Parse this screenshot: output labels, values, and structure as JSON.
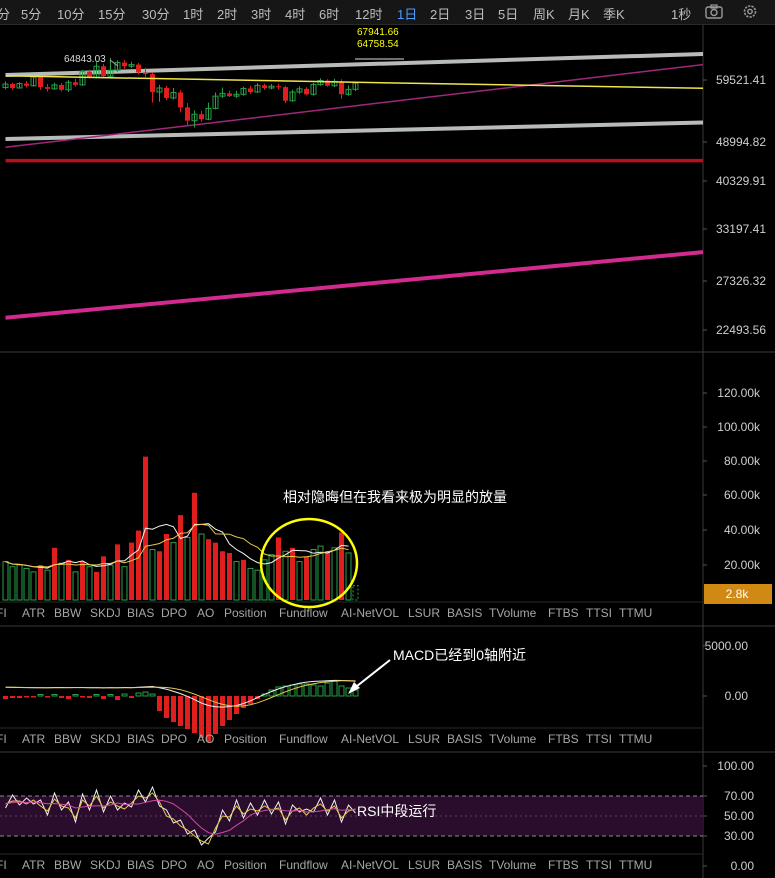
{
  "toolbar": {
    "timeframes": [
      "分",
      "5分",
      "10分",
      "15分",
      "30分",
      "1时",
      "2时",
      "3时",
      "4时",
      "6时",
      "12时",
      "1日",
      "2日",
      "3日",
      "5日",
      "周K",
      "月K",
      "季K"
    ],
    "active": "1日",
    "seconds_label": "1秒",
    "camera_icon": "camera-icon",
    "settings_icon": "gear-icon"
  },
  "indicator_tabs": [
    "FI",
    "ATR",
    "BBW",
    "SKDJ",
    "BIAS",
    "DPO",
    "AO",
    "Position",
    "Fundflow",
    "AI-NetVOL",
    "LSUR",
    "BASIS",
    "TVolume",
    "FTBS",
    "TTSI",
    "TTMU"
  ],
  "colors": {
    "up": "#26a148",
    "down": "#e01e1e",
    "yellow_line": "#f0e44a",
    "channel": "#b8bcb8",
    "magenta": "#d22a8e",
    "purple_thin": "#a0287a",
    "support_red": "#b5101e",
    "annotation": "#ffff00",
    "volume_badge": "#d08a14"
  },
  "chart_data": [
    {
      "type": "candlestick",
      "name": "price",
      "y_ticks": [
        "59521.41",
        "48994.82",
        "40329.91",
        "33197.41",
        "27326.32",
        "22493.56"
      ],
      "labels": {
        "high_left": "64843.03",
        "top_1": "67941.66",
        "top_2": "64758.54"
      },
      "candles": [
        [
          57800,
          58600,
          57400,
          59200
        ],
        [
          58600,
          57700,
          57300,
          58900
        ],
        [
          57700,
          58700,
          57600,
          59000
        ],
        [
          58700,
          58200,
          57800,
          59300
        ],
        [
          58200,
          60200,
          58000,
          60600
        ],
        [
          60200,
          57900,
          57300,
          60500
        ],
        [
          57900,
          57500,
          56900,
          58600
        ],
        [
          57500,
          58400,
          57300,
          58900
        ],
        [
          58400,
          57300,
          56900,
          58800
        ],
        [
          57300,
          59000,
          56800,
          59500
        ],
        [
          59000,
          58400,
          58000,
          59800
        ],
        [
          58400,
          61500,
          58200,
          61900
        ],
        [
          61500,
          60100,
          59900,
          62000
        ],
        [
          60100,
          62800,
          59900,
          63800
        ],
        [
          62800,
          60400,
          60100,
          63400
        ],
        [
          60400,
          61800,
          60200,
          64843
        ],
        [
          61800,
          63700,
          61400,
          64300
        ],
        [
          63700,
          62800,
          62200,
          64300
        ],
        [
          62800,
          63200,
          62400,
          63900
        ],
        [
          63200,
          61300,
          60900,
          63600
        ],
        [
          61300,
          60900,
          60200,
          62400
        ],
        [
          60900,
          56800,
          54500,
          61300
        ],
        [
          56800,
          57700,
          54700,
          58400
        ],
        [
          57700,
          55500,
          55000,
          58200
        ],
        [
          55500,
          56700,
          55200,
          57700
        ],
        [
          56700,
          53500,
          52500,
          57200
        ],
        [
          53500,
          50800,
          49800,
          54400
        ],
        [
          50800,
          52100,
          49500,
          52900
        ],
        [
          52100,
          51100,
          50600,
          52800
        ],
        [
          51100,
          53300,
          50900,
          54500
        ],
        [
          53300,
          55900,
          53100,
          56700
        ],
        [
          55900,
          56500,
          55500,
          57800
        ],
        [
          56500,
          55900,
          55700,
          57100
        ],
        [
          55900,
          56300,
          55500,
          57100
        ],
        [
          56300,
          57600,
          56000,
          58000
        ],
        [
          57600,
          56800,
          56400,
          58200
        ],
        [
          56800,
          58300,
          56600,
          58800
        ],
        [
          58300,
          57700,
          57300,
          58700
        ],
        [
          57700,
          58100,
          57400,
          58600
        ],
        [
          58100,
          57900,
          57400,
          58700
        ],
        [
          57900,
          54900,
          54400,
          58200
        ],
        [
          54900,
          56800,
          54700,
          57300
        ],
        [
          56800,
          57500,
          56400,
          58100
        ],
        [
          57500,
          56300,
          56100,
          57900
        ],
        [
          56300,
          58500,
          56000,
          58900
        ],
        [
          58500,
          59400,
          58200,
          59900
        ],
        [
          59400,
          58200,
          58000,
          59700
        ],
        [
          58200,
          59200,
          57900,
          59800
        ],
        [
          59200,
          56300,
          55300,
          59700
        ],
        [
          56300,
          57400,
          56000,
          58300
        ],
        [
          57400,
          58800,
          57000,
          59100
        ]
      ],
      "lines": {
        "yellow_trend": [
          [
            0,
            60500
          ],
          [
            50,
            59000
          ],
          [
            200,
            55000
          ]
        ],
        "upper_channel": [
          [
            0,
            60700
          ],
          [
            200,
            71500
          ]
        ],
        "lower_channel": [
          [
            0,
            47300
          ],
          [
            200,
            53800
          ]
        ],
        "purple_trend": [
          [
            0,
            45800
          ],
          [
            140,
            72000
          ]
        ],
        "magenta_support": [
          [
            0,
            23600
          ],
          [
            200,
            39400
          ]
        ],
        "red_horizontal": [
          [
            0,
            43500
          ],
          [
            200,
            43500
          ]
        ]
      }
    },
    {
      "type": "bar",
      "name": "volume",
      "y_ticks": [
        "120.00k",
        "100.00k",
        "80.00k",
        "60.00k",
        "40.00k",
        "20.00k"
      ],
      "current_value": "2.8k",
      "values": [
        22000,
        19000,
        20000,
        18000,
        16000,
        20000,
        17000,
        30000,
        21000,
        23000,
        16000,
        22000,
        19000,
        16000,
        25000,
        20000,
        32000,
        19000,
        33000,
        40000,
        83000,
        29000,
        28000,
        38000,
        33000,
        49000,
        36000,
        62000,
        38000,
        35000,
        33000,
        28000,
        27000,
        22000,
        23000,
        18000,
        17000,
        23000,
        26000,
        36000,
        28000,
        30000,
        22000,
        25000,
        29000,
        31000,
        28000,
        30000,
        39000,
        27000,
        8000
      ],
      "up": [
        true,
        true,
        true,
        true,
        true,
        false,
        true,
        false,
        true,
        false,
        true,
        false,
        true,
        false,
        false,
        true,
        false,
        true,
        false,
        false,
        false,
        true,
        false,
        false,
        true,
        false,
        true,
        false,
        true,
        false,
        false,
        false,
        false,
        true,
        false,
        true,
        true,
        true,
        true,
        false,
        true,
        false,
        true,
        false,
        true,
        true,
        false,
        true,
        false,
        true,
        true
      ],
      "annotation": "相对隐晦但在我看来极为明显的放量"
    },
    {
      "type": "bar",
      "name": "MACD",
      "y_ticks": [
        "5000.00",
        "0.00"
      ],
      "histogram": [
        -300,
        -200,
        -200,
        -100,
        -100,
        0,
        -100,
        0,
        -200,
        -300,
        0,
        -100,
        -200,
        0,
        -300,
        100,
        -400,
        200,
        -200,
        300,
        400,
        200,
        -1500,
        -2200,
        -2600,
        -3000,
        -3300,
        -3700,
        -4200,
        -4600,
        -3800,
        -3000,
        -2400,
        -1800,
        -1200,
        -800,
        -300,
        200,
        600,
        900,
        1000,
        1100,
        1200,
        1200,
        1100,
        1000,
        1300,
        1500,
        1000,
        800,
        600
      ],
      "annotation": "MACD已经到0轴附近"
    },
    {
      "type": "line",
      "name": "RSI",
      "y_ticks": [
        "100.00",
        "70.00",
        "50.00",
        "30.00",
        "0.00"
      ],
      "values": [
        62,
        65,
        65,
        62,
        66,
        60,
        55,
        67,
        60,
        58,
        48,
        66,
        60,
        70,
        58,
        64,
        60,
        57,
        63,
        70,
        68,
        73,
        64,
        50,
        47,
        40,
        36,
        30,
        25,
        22,
        38,
        50,
        49,
        60,
        52,
        57,
        55,
        60,
        56,
        58,
        46,
        55,
        58,
        51,
        58,
        62,
        55,
        60,
        48,
        55,
        57
      ],
      "annotation": "RSI中段运行"
    }
  ]
}
